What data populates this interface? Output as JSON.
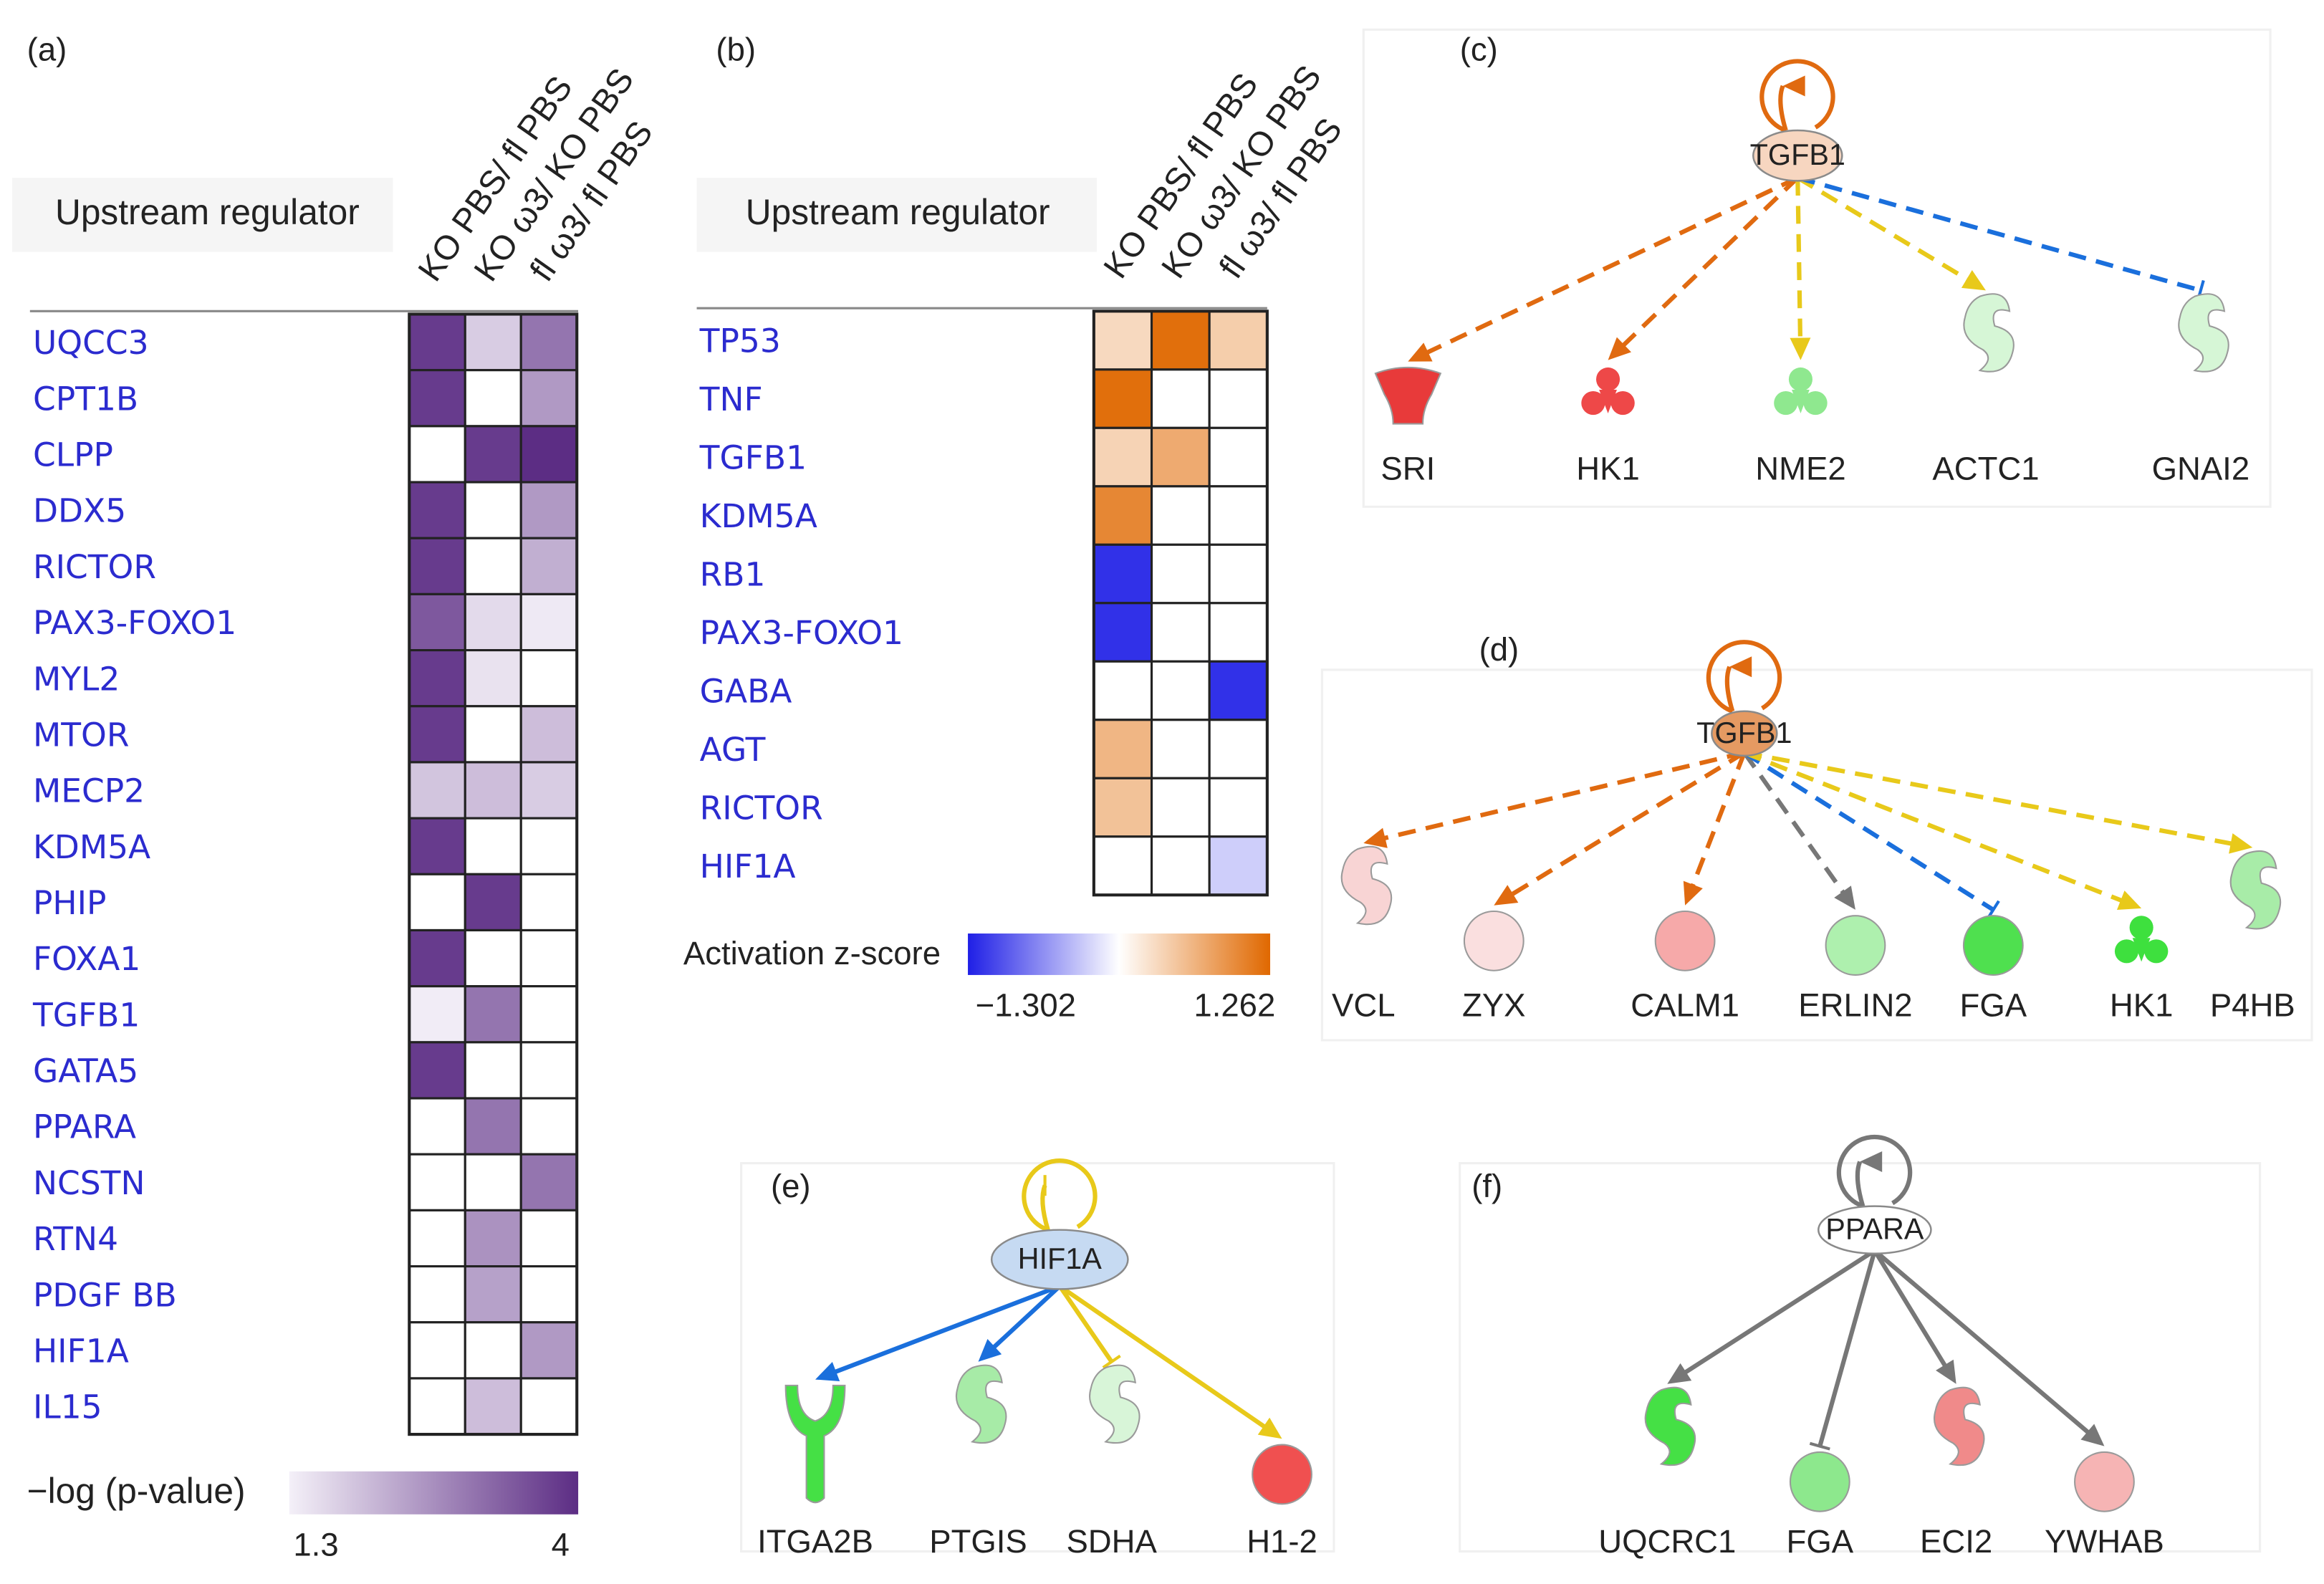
{
  "chart_data": [
    {
      "type": "heatmap",
      "panel": "(a)",
      "row_header": "Upstream regulator",
      "columns": [
        "KO PBS/ fl PBS",
        "KO ω3/ KO PBS",
        "fl ω3/ fl PBS"
      ],
      "rows": [
        "UQCC3",
        "CPT1B",
        "CLPP",
        "DDX5",
        "RICTOR",
        "PAX3-FOXO1",
        "MYL2",
        "MTOR",
        "MECP2",
        "KDM5A",
        "PHIP",
        "FOXA1",
        "TGFB1",
        "GATA5",
        "PPARA",
        "NCSTN",
        "RTN4",
        "PDGF BB",
        "HIF1A",
        "IL15"
      ],
      "values": [
        [
          3.8,
          1.8,
          3.0
        ],
        [
          3.8,
          null,
          2.5
        ],
        [
          null,
          3.8,
          4.0
        ],
        [
          3.8,
          null,
          2.5
        ],
        [
          3.8,
          null,
          2.2
        ],
        [
          3.4,
          1.6,
          1.4
        ],
        [
          3.8,
          1.5,
          null
        ],
        [
          3.8,
          null,
          2.0
        ],
        [
          1.9,
          2.0,
          1.8
        ],
        [
          3.8,
          null,
          null
        ],
        [
          null,
          3.8,
          null
        ],
        [
          3.8,
          null,
          null
        ],
        [
          1.35,
          3.0,
          null
        ],
        [
          3.8,
          null,
          null
        ],
        [
          null,
          3.0,
          null
        ],
        [
          null,
          null,
          3.0
        ],
        [
          null,
          2.6,
          null
        ],
        [
          null,
          2.4,
          null
        ],
        [
          null,
          null,
          2.5
        ],
        [
          null,
          2.0,
          null
        ]
      ],
      "colorbar": {
        "label": "−log (p-value)",
        "lim": [
          1.3,
          4
        ],
        "ticks": [
          1.3,
          4
        ],
        "colors": [
          "#f4f0f8",
          "#5c2d84"
        ]
      }
    },
    {
      "type": "heatmap",
      "panel": "(b)",
      "row_header": "Upstream regulator",
      "columns": [
        "KO PBS/ fl PBS",
        "KO ω3/ KO PBS",
        "fl ω3/ fl PBS"
      ],
      "rows": [
        "TP53",
        "TNF",
        "TGFB1",
        "KDM5A",
        "RB1",
        "PAX3-FOXO1",
        "GABA",
        "AGT",
        "RICTOR",
        "HIF1A"
      ],
      "values": [
        [
          0.3,
          1.2,
          0.4
        ],
        [
          1.2,
          null,
          null
        ],
        [
          0.35,
          0.7,
          null
        ],
        [
          1.0,
          null,
          null
        ],
        [
          -1.2,
          null,
          null
        ],
        [
          -1.2,
          null,
          null
        ],
        [
          null,
          null,
          -1.2
        ],
        [
          0.6,
          null,
          null
        ],
        [
          0.5,
          null,
          null
        ],
        [
          null,
          null,
          -0.3
        ]
      ],
      "colorbar": {
        "label": "Activation z-score",
        "lim": [
          -1.302,
          1.262
        ],
        "ticks": [
          {
            "value": -1.302,
            "label": "−1.302"
          },
          1.262
        ],
        "colors": [
          "#1f1fe6",
          "#ffffff",
          "#e06800"
        ]
      }
    }
  ],
  "networks": [
    {
      "panel": "(c)",
      "hub": {
        "label": "TGFB1",
        "color": "#f7d6c0"
      },
      "nodes": [
        {
          "label": "SRI",
          "color": "#e83a3a"
        },
        {
          "label": "HK1",
          "color": "#ee4848"
        },
        {
          "label": "NME2",
          "color": "#8fe88f"
        },
        {
          "label": "ACTC1",
          "color": "#d6f6d6"
        },
        {
          "label": "GNAI2",
          "color": "#d6f6d6"
        }
      ]
    },
    {
      "panel": "(d)",
      "hub": {
        "label": "TGFB1",
        "color": "#e59a62"
      },
      "nodes": [
        {
          "label": "VCL",
          "color": "#f8d4d4"
        },
        {
          "label": "ZYX",
          "color": "#fadfdf"
        },
        {
          "label": "CALM1",
          "color": "#f6a9a9"
        },
        {
          "label": "ERLIN2",
          "color": "#aef0ae"
        },
        {
          "label": "FGA",
          "color": "#4fe04f"
        },
        {
          "label": "HK1",
          "color": "#3ee03e"
        },
        {
          "label": "P4HB",
          "color": "#a8eca8"
        }
      ]
    },
    {
      "panel": "(e)",
      "hub": {
        "label": "HIF1A",
        "color": "#c6daf2"
      },
      "nodes": [
        {
          "label": "ITGA2B",
          "color": "#45e045"
        },
        {
          "label": "PTGIS",
          "color": "#a7eba7"
        },
        {
          "label": "SDHA",
          "color": "#d8f5d8"
        },
        {
          "label": "H1-2",
          "color": "#f05050"
        }
      ]
    },
    {
      "panel": "(f)",
      "hub": {
        "label": "PPARA",
        "color": "#ffffff"
      },
      "nodes": [
        {
          "label": "UQCRC1",
          "color": "#45e045"
        },
        {
          "label": "FGA",
          "color": "#8de88d"
        },
        {
          "label": "ECI2",
          "color": "#f08a8a"
        },
        {
          "label": "YWHAB",
          "color": "#f6b4b4"
        }
      ]
    }
  ]
}
